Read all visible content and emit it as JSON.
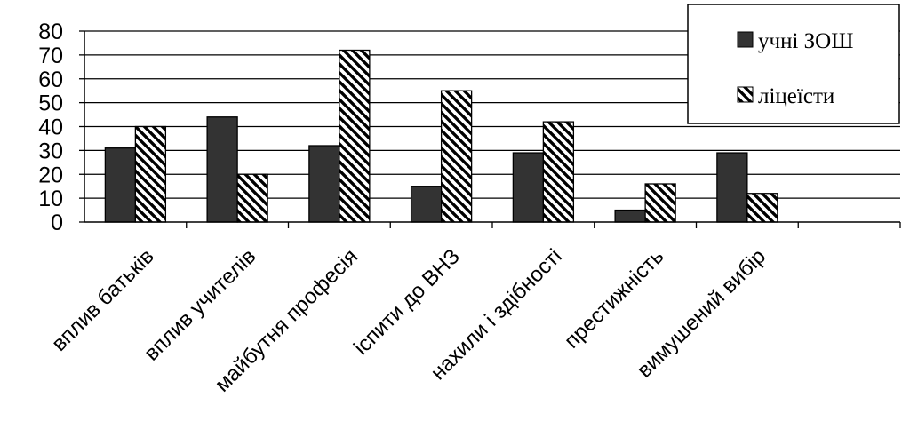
{
  "chart_data": {
    "type": "bar",
    "categories": [
      "вплив батьків",
      "вплив учителів",
      "майбутня професія",
      "іспити до ВНЗ",
      "нахили і здібності",
      "престижність",
      "вимушений вибір"
    ],
    "series": [
      {
        "name": "учні ЗОШ",
        "values": [
          31,
          44,
          32,
          15,
          29,
          5,
          29
        ],
        "fill": "dark",
        "color": "#333333"
      },
      {
        "name": "ліцеїсти",
        "values": [
          40,
          20,
          72,
          55,
          42,
          16,
          12
        ],
        "fill": "hatch",
        "color": "#000000"
      }
    ],
    "ylim": [
      0,
      80
    ],
    "yticks": [
      0,
      10,
      20,
      30,
      40,
      50,
      60,
      70,
      80
    ],
    "category_slots": 8,
    "grid": true,
    "legend_position": "top-right",
    "title": "",
    "xlabel": "",
    "ylabel": ""
  }
}
